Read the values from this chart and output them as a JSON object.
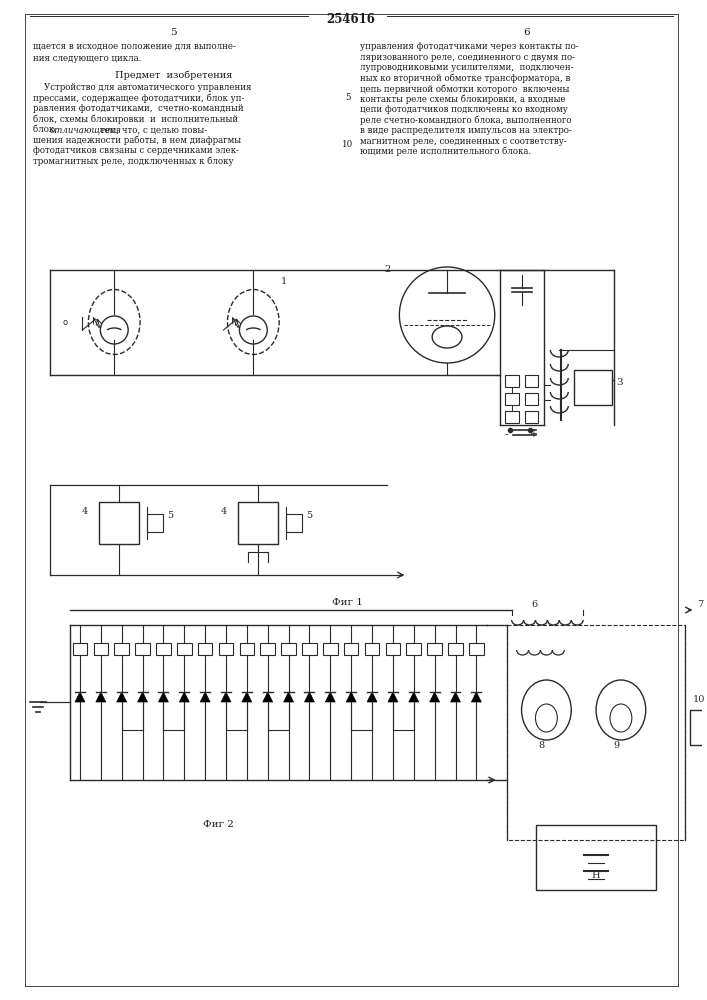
{
  "page_title": "254616",
  "col_left_num": "5",
  "col_right_num": "6",
  "text_top_left": "щается в исходное положение для выполне-\nния следующего цикла.",
  "text_section_title": "Предмет  изобретения",
  "text_body_left": "    Устройство для автоматического управления\nпрессами, содержащее фотодатчики, блок уп-\nравления фотодатчиками,  счетно-командный\nблок, схемы блокировки  и  исполнительный\nблок, отличающееся тем, что, с целью повы-\nшения надежности работы, в нем диафрагмы\nфотодатчиков связаны с сердечниками элек-\nтромагнитных реле, подключенных к блоку",
  "text_body_right": "управления фотодатчиками через контакты по-\nляризованного реле, соединенного с двумя по-\nлупроводниковыми усилителями,  подключен-\nных ко вторичной обмотке трансформатора, в\nцепь первичной обмотки которого  включены\nконтакты реле схемы блокировки, а входные\nцепи фотодатчиков подключены ко входному\nреле счетно-командного блока, выполненного\nв виде распределителя импульсов на электро-\nмагнитном реле, соединенных с соответству-\nющими реле исполнительного блока.",
  "fig1_label": "Фиг 1",
  "fig2_label": "Фиг 2",
  "bg_color": "#ffffff",
  "text_color": "#1a1a1a",
  "line_color": "#2a2a2a"
}
